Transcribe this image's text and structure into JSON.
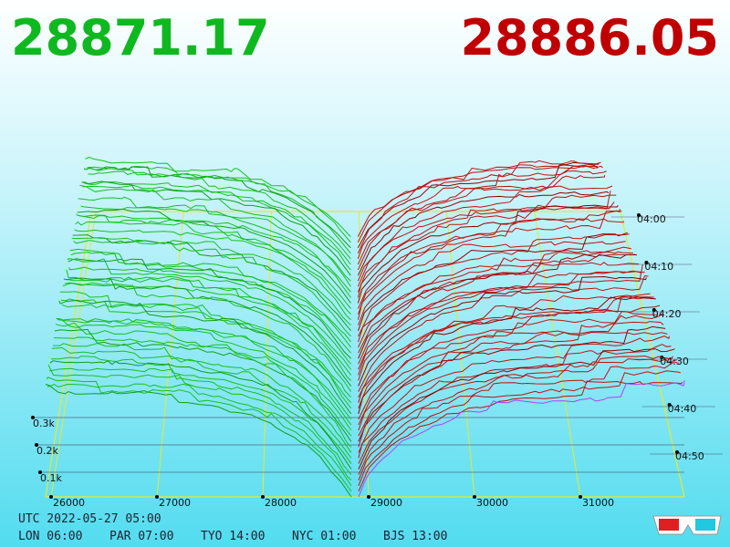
{
  "bid": 28871.17,
  "ask": 28886.05,
  "price_axis": {
    "ticks": [
      26000,
      27000,
      28000,
      29000,
      30000,
      31000
    ]
  },
  "volume_axis": {
    "ticks": [
      "0.1k",
      "0.2k",
      "0.3k"
    ]
  },
  "time_axis": {
    "ticks": [
      "04:00",
      "04:10",
      "04:20",
      "04:30",
      "04:40",
      "04:50"
    ]
  },
  "clock": {
    "utc": "UTC 2022-05-27 05:00",
    "cities": [
      "LON 06:00",
      "PAR 07:00",
      "TYO 14:00",
      "NYC 01:00",
      "BJS 13:00"
    ]
  }
}
